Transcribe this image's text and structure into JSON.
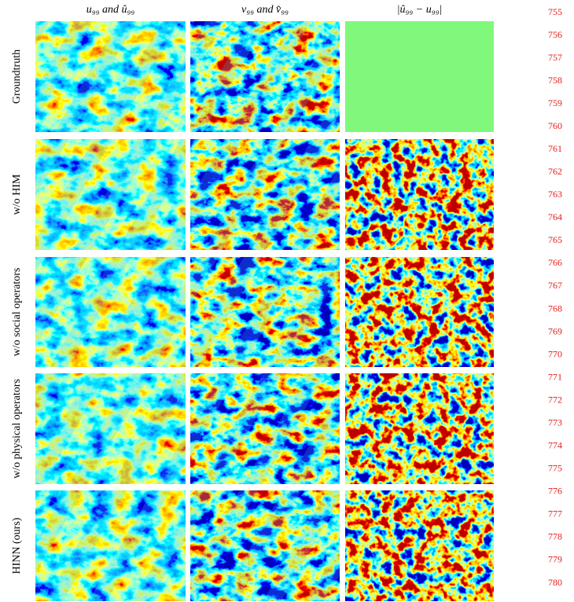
{
  "figure": {
    "columns": [
      "u₉₉ and û₉₉",
      "v₉₉ and v̂₉₉",
      "|û₉₉ − u₉₉|"
    ],
    "rows": [
      "Groundtruth",
      "w/o HIM",
      "w/o social operators",
      "w/o physical operators",
      "HINN (ours)"
    ],
    "line_numbers": [
      755,
      756,
      757,
      758,
      759,
      760,
      761,
      762,
      763,
      764,
      765,
      766,
      767,
      768,
      769,
      770,
      771,
      772,
      773,
      774,
      775,
      776,
      777,
      778,
      779,
      780
    ]
  }
}
